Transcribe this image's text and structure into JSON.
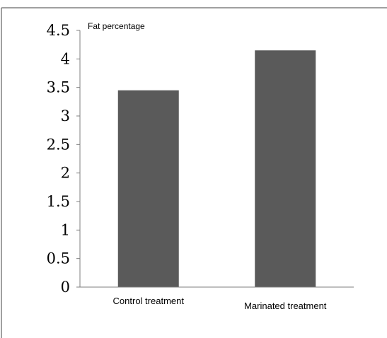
{
  "chart_data": {
    "type": "bar",
    "ylabel": "Fat percentage",
    "categories": [
      "Control treatment",
      "Marinated treatment"
    ],
    "values": [
      3.45,
      4.15
    ],
    "ylim": [
      0,
      4.5
    ],
    "yticks": [
      "0",
      "0.5",
      "1",
      "1.5",
      "2",
      "2.5",
      "3",
      "3.5",
      "4",
      "4.5"
    ],
    "grid": false,
    "colors": {
      "bar": "#5a5a5a",
      "axis": "#7f7f7f",
      "frame": "#808080"
    }
  }
}
